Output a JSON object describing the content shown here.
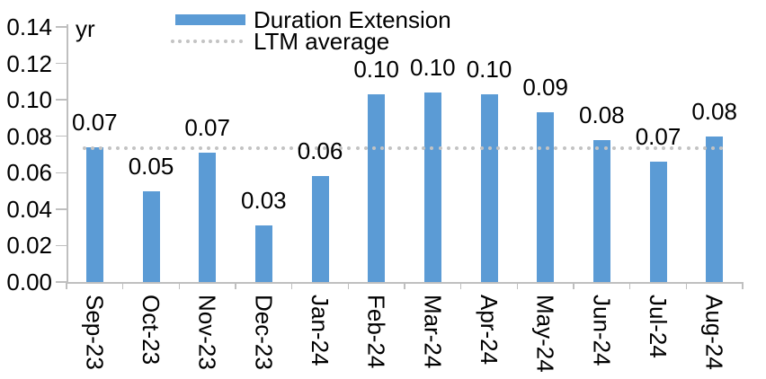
{
  "chart_data": {
    "type": "bar",
    "title": "",
    "unit_label": "yr",
    "categories": [
      "Sep-23",
      "Oct-23",
      "Nov-23",
      "Dec-23",
      "Jan-24",
      "Feb-24",
      "Mar-24",
      "Apr-24",
      "May-24",
      "Jun-24",
      "Jul-24",
      "Aug-24"
    ],
    "series": [
      {
        "name": "Duration Extension",
        "type": "bar",
        "color": "#5B9BD5",
        "values": [
          0.074,
          0.05,
          0.071,
          0.031,
          0.058,
          0.103,
          0.104,
          0.103,
          0.093,
          0.078,
          0.066,
          0.08
        ],
        "data_labels": [
          "0.07",
          "0.05",
          "0.07",
          "0.03",
          "0.06",
          "0.10",
          "0.10",
          "0.10",
          "0.09",
          "0.08",
          "0.07",
          "0.08"
        ]
      },
      {
        "name": "LTM average",
        "type": "line",
        "line_style": "dotted",
        "color": "#C3C3C3",
        "value": 0.0735
      }
    ],
    "y_axis": {
      "min": 0.0,
      "max": 0.14,
      "step": 0.02,
      "tick_labels": [
        "0.00",
        "0.02",
        "0.04",
        "0.06",
        "0.08",
        "0.10",
        "0.12",
        "0.14"
      ],
      "unit": "yr"
    },
    "x_axis": {
      "label_rotation": "vertical"
    },
    "grid": false,
    "legend_position": "top-left-stacked"
  },
  "legend": {
    "items": [
      {
        "label": "Duration Extension",
        "swatch": "bar-swatch"
      },
      {
        "label": "LTM average",
        "swatch": "dotted-line-swatch"
      }
    ]
  },
  "colors": {
    "bar": "#5B9BD5",
    "dotted_line": "#C3C3C3",
    "axis": "#BFBFBF",
    "text": "#000000",
    "background": "#FFFFFF"
  }
}
